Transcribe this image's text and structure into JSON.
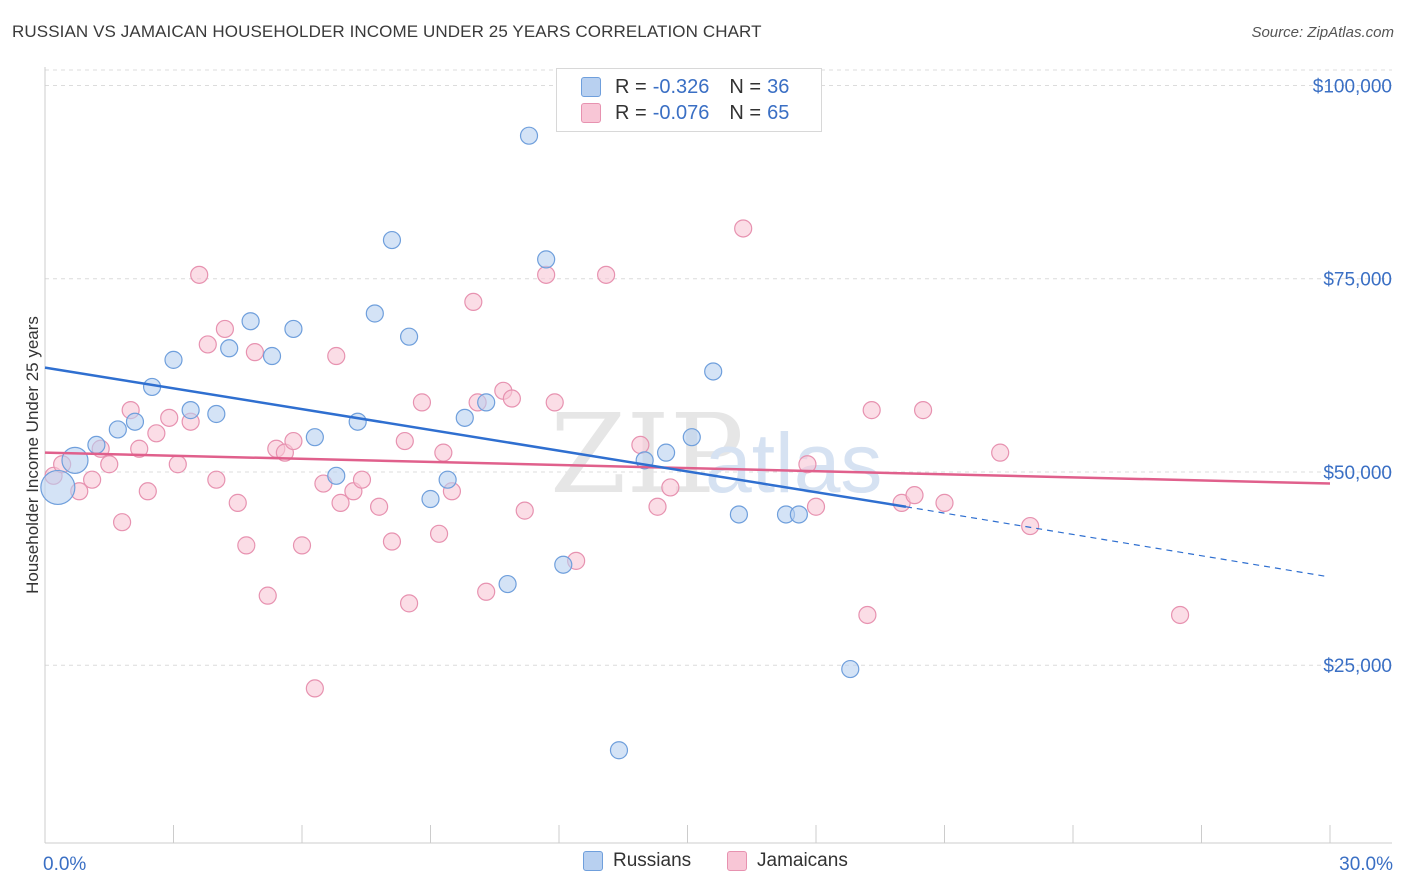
{
  "title": "RUSSIAN VS JAMAICAN HOUSEHOLDER INCOME UNDER 25 YEARS CORRELATION CHART",
  "source": "Source: ZipAtlas.com",
  "watermark": {
    "zip": "ZIP",
    "atlas": "atlas"
  },
  "legend": {
    "russians": {
      "r_label": "R =",
      "r_value": "-0.326",
      "n_label": "N =",
      "n_value": "36"
    },
    "jamaicans": {
      "r_label": "R =",
      "r_value": "-0.076",
      "n_label": "N =",
      "n_value": "65"
    }
  },
  "colors": {
    "russian_fill": "#b8d0f0",
    "russian_stroke": "#6f9fdc",
    "russian_line": "#2f6fd0",
    "jamaican_fill": "#f8c6d6",
    "jamaican_stroke": "#e792b0",
    "jamaican_line": "#e0608c",
    "axis_label": "#3a6fc4",
    "grid": "#dcdcdc"
  },
  "chart_data": {
    "type": "scatter",
    "title": "RUSSIAN VS JAMAICAN HOUSEHOLDER INCOME UNDER 25 YEARS CORRELATION CHART",
    "xlabel": "",
    "ylabel": "Householder Income Under 25 years",
    "xlim": [
      0,
      30
    ],
    "ylim": [
      2000,
      102000
    ],
    "x_tick_labels": [
      "0.0%",
      "30.0%"
    ],
    "y_ticks": [
      25000,
      50000,
      75000,
      100000
    ],
    "y_tick_labels": [
      "$25,000",
      "$50,000",
      "$75,000",
      "$100,000"
    ],
    "grid": "horizontal dashed",
    "legend_position": "bottom",
    "series": [
      {
        "name": "Russians",
        "points": [
          {
            "x": 0.3,
            "y": 48000,
            "s": 3
          },
          {
            "x": 0.7,
            "y": 51500,
            "s": 2
          },
          {
            "x": 1.2,
            "y": 53500,
            "s": 1
          },
          {
            "x": 1.7,
            "y": 55500,
            "s": 1
          },
          {
            "x": 2.1,
            "y": 56500,
            "s": 1
          },
          {
            "x": 2.5,
            "y": 61000,
            "s": 1
          },
          {
            "x": 3.0,
            "y": 64500,
            "s": 1
          },
          {
            "x": 3.4,
            "y": 58000,
            "s": 1
          },
          {
            "x": 4.0,
            "y": 57500,
            "s": 1
          },
          {
            "x": 4.3,
            "y": 66000,
            "s": 1
          },
          {
            "x": 4.8,
            "y": 69500,
            "s": 1
          },
          {
            "x": 5.3,
            "y": 65000,
            "s": 1
          },
          {
            "x": 5.8,
            "y": 68500,
            "s": 1
          },
          {
            "x": 6.3,
            "y": 54500,
            "s": 1
          },
          {
            "x": 6.8,
            "y": 49500,
            "s": 1
          },
          {
            "x": 7.3,
            "y": 56500,
            "s": 1
          },
          {
            "x": 7.7,
            "y": 70500,
            "s": 1
          },
          {
            "x": 8.1,
            "y": 80000,
            "s": 1
          },
          {
            "x": 8.5,
            "y": 67500,
            "s": 1
          },
          {
            "x": 9.0,
            "y": 46500,
            "s": 1
          },
          {
            "x": 9.4,
            "y": 49000,
            "s": 1
          },
          {
            "x": 9.8,
            "y": 57000,
            "s": 1
          },
          {
            "x": 10.3,
            "y": 59000,
            "s": 1
          },
          {
            "x": 10.8,
            "y": 35500,
            "s": 1
          },
          {
            "x": 11.3,
            "y": 93500,
            "s": 1
          },
          {
            "x": 11.7,
            "y": 77500,
            "s": 1
          },
          {
            "x": 12.1,
            "y": 38000,
            "s": 1
          },
          {
            "x": 13.4,
            "y": 14000,
            "s": 1
          },
          {
            "x": 14.0,
            "y": 51500,
            "s": 1
          },
          {
            "x": 14.5,
            "y": 52500,
            "s": 1
          },
          {
            "x": 15.1,
            "y": 54500,
            "s": 1
          },
          {
            "x": 15.6,
            "y": 63000,
            "s": 1
          },
          {
            "x": 16.2,
            "y": 44500,
            "s": 1
          },
          {
            "x": 17.3,
            "y": 44500,
            "s": 1
          },
          {
            "x": 17.6,
            "y": 44500,
            "s": 1
          },
          {
            "x": 18.8,
            "y": 24500,
            "s": 1
          }
        ],
        "trendline": {
          "x": [
            0,
            20.1
          ],
          "y": [
            63500,
            45500
          ]
        },
        "trendline_extension": {
          "x": [
            20.1,
            29.9
          ],
          "y": [
            45500,
            36500
          ]
        }
      },
      {
        "name": "Jamaicans",
        "points": [
          {
            "x": 0.2,
            "y": 49500,
            "s": 1
          },
          {
            "x": 0.4,
            "y": 51000,
            "s": 1
          },
          {
            "x": 0.8,
            "y": 47500,
            "s": 1
          },
          {
            "x": 1.1,
            "y": 49000,
            "s": 1
          },
          {
            "x": 1.3,
            "y": 53000,
            "s": 1
          },
          {
            "x": 1.5,
            "y": 51000,
            "s": 1
          },
          {
            "x": 1.8,
            "y": 43500,
            "s": 1
          },
          {
            "x": 2.0,
            "y": 58000,
            "s": 1
          },
          {
            "x": 2.2,
            "y": 53000,
            "s": 1
          },
          {
            "x": 2.4,
            "y": 47500,
            "s": 1
          },
          {
            "x": 2.6,
            "y": 55000,
            "s": 1
          },
          {
            "x": 2.9,
            "y": 57000,
            "s": 1
          },
          {
            "x": 3.1,
            "y": 51000,
            "s": 1
          },
          {
            "x": 3.4,
            "y": 56500,
            "s": 1
          },
          {
            "x": 3.6,
            "y": 75500,
            "s": 1
          },
          {
            "x": 3.8,
            "y": 66500,
            "s": 1
          },
          {
            "x": 4.0,
            "y": 49000,
            "s": 1
          },
          {
            "x": 4.2,
            "y": 68500,
            "s": 1
          },
          {
            "x": 4.5,
            "y": 46000,
            "s": 1
          },
          {
            "x": 4.7,
            "y": 40500,
            "s": 1
          },
          {
            "x": 4.9,
            "y": 65500,
            "s": 1
          },
          {
            "x": 5.2,
            "y": 34000,
            "s": 1
          },
          {
            "x": 5.4,
            "y": 53000,
            "s": 1
          },
          {
            "x": 5.6,
            "y": 52500,
            "s": 1
          },
          {
            "x": 5.8,
            "y": 54000,
            "s": 1
          },
          {
            "x": 6.0,
            "y": 40500,
            "s": 1
          },
          {
            "x": 6.3,
            "y": 22000,
            "s": 1
          },
          {
            "x": 6.5,
            "y": 48500,
            "s": 1
          },
          {
            "x": 6.8,
            "y": 65000,
            "s": 1
          },
          {
            "x": 6.9,
            "y": 46000,
            "s": 1
          },
          {
            "x": 7.2,
            "y": 47500,
            "s": 1
          },
          {
            "x": 7.4,
            "y": 49000,
            "s": 1
          },
          {
            "x": 7.8,
            "y": 45500,
            "s": 1
          },
          {
            "x": 8.1,
            "y": 41000,
            "s": 1
          },
          {
            "x": 8.4,
            "y": 54000,
            "s": 1
          },
          {
            "x": 8.5,
            "y": 33000,
            "s": 1
          },
          {
            "x": 8.8,
            "y": 59000,
            "s": 1
          },
          {
            "x": 9.2,
            "y": 42000,
            "s": 1
          },
          {
            "x": 9.3,
            "y": 52500,
            "s": 1
          },
          {
            "x": 9.5,
            "y": 47500,
            "s": 1
          },
          {
            "x": 10.0,
            "y": 72000,
            "s": 1
          },
          {
            "x": 10.1,
            "y": 59000,
            "s": 1
          },
          {
            "x": 10.3,
            "y": 34500,
            "s": 1
          },
          {
            "x": 10.7,
            "y": 60500,
            "s": 1
          },
          {
            "x": 10.9,
            "y": 59500,
            "s": 1
          },
          {
            "x": 11.2,
            "y": 45000,
            "s": 1
          },
          {
            "x": 11.7,
            "y": 75500,
            "s": 1
          },
          {
            "x": 11.9,
            "y": 59000,
            "s": 1
          },
          {
            "x": 12.4,
            "y": 38500,
            "s": 1
          },
          {
            "x": 13.1,
            "y": 75500,
            "s": 1
          },
          {
            "x": 13.9,
            "y": 53500,
            "s": 1
          },
          {
            "x": 14.3,
            "y": 45500,
            "s": 1
          },
          {
            "x": 14.6,
            "y": 48000,
            "s": 1
          },
          {
            "x": 16.3,
            "y": 81500,
            "s": 1
          },
          {
            "x": 17.8,
            "y": 51000,
            "s": 1
          },
          {
            "x": 18.0,
            "y": 45500,
            "s": 1
          },
          {
            "x": 19.2,
            "y": 31500,
            "s": 1
          },
          {
            "x": 19.3,
            "y": 58000,
            "s": 1
          },
          {
            "x": 20.0,
            "y": 46000,
            "s": 1
          },
          {
            "x": 20.3,
            "y": 47000,
            "s": 1
          },
          {
            "x": 20.5,
            "y": 58000,
            "s": 1
          },
          {
            "x": 21.0,
            "y": 46000,
            "s": 1
          },
          {
            "x": 22.3,
            "y": 52500,
            "s": 1
          },
          {
            "x": 23.0,
            "y": 43000,
            "s": 1
          },
          {
            "x": 26.5,
            "y": 31500,
            "s": 1
          }
        ],
        "trendline": {
          "x": [
            0,
            30
          ],
          "y": [
            52500,
            48500
          ]
        }
      }
    ]
  }
}
